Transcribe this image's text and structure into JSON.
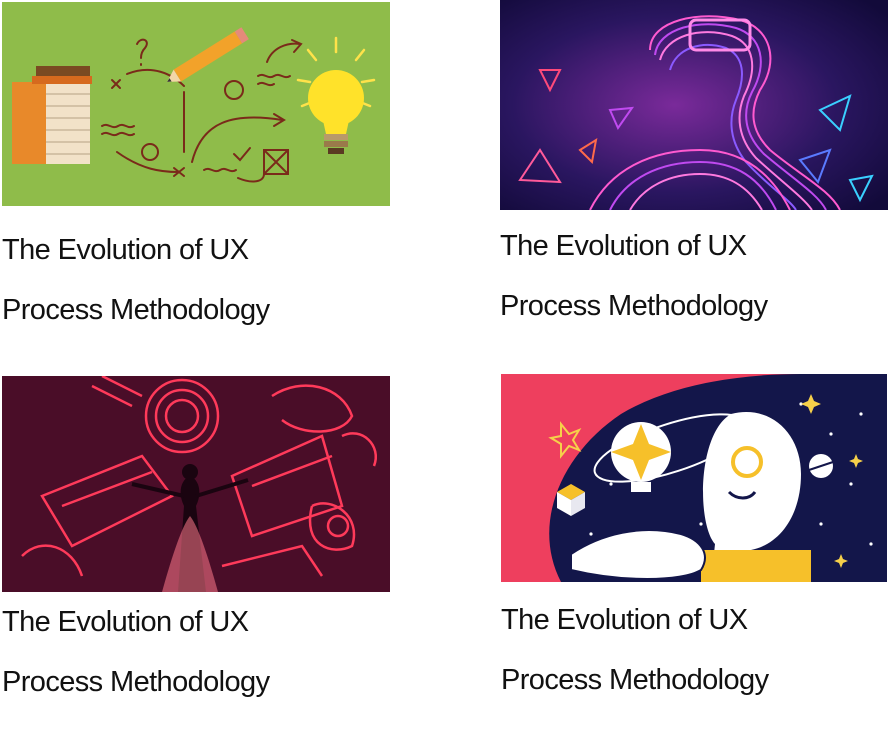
{
  "cards": [
    {
      "line1": "The Evolution of  UX",
      "line2": "Process Methodology",
      "image": "ux-sketch-lightbulb-illustration"
    },
    {
      "line1": "The Evolution of  UX",
      "line2": "Process Methodology",
      "image": "vr-headset-neon-figure"
    },
    {
      "line1": "The Evolution of  UX",
      "line2": "Process Methodology",
      "image": "neon-instruments-performer"
    },
    {
      "line1": "The Evolution of  UX",
      "line2": "Process Methodology",
      "image": "woman-idea-space-illustration"
    }
  ],
  "colors": {
    "text": "#111111",
    "card1_bg": "#8fbc4a",
    "card2_bg": "#1a0f4a",
    "card3_bg": "#3a0a20",
    "card4_bg": "#ee3f5e"
  }
}
